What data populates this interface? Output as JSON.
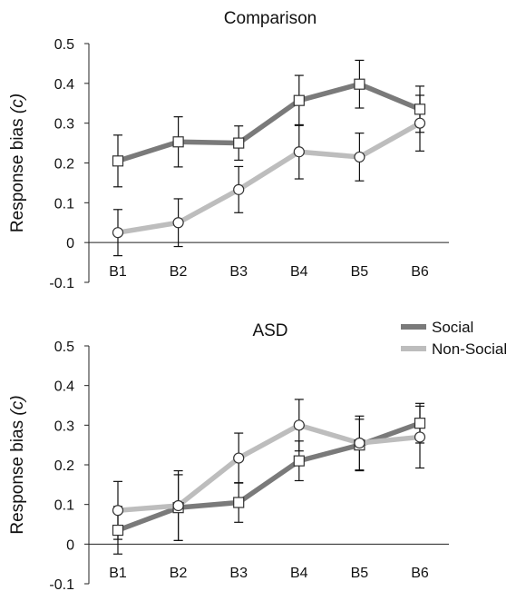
{
  "legend": {
    "placement": "right, between panels",
    "items": [
      {
        "label": "Social",
        "color": "#7a7a7a"
      },
      {
        "label": "Non-Social",
        "color": "#bdbdbd"
      }
    ]
  },
  "chart_data": [
    {
      "type": "line",
      "title": "Comparison",
      "xlabel": "",
      "ylabel": "Response bias (c)",
      "ylabel_main": "Response bias ",
      "ylabel_symbol": "(c)",
      "categories": [
        "B1",
        "B2",
        "B3",
        "B4",
        "B5",
        "B6"
      ],
      "ylim": [
        -0.1,
        0.5
      ],
      "yticks": [
        -0.1,
        0,
        0.1,
        0.2,
        0.3,
        0.4,
        0.5
      ],
      "ytick_labels": [
        "-0.1",
        "0",
        "0.1",
        "0.2",
        "0.3",
        "0.4",
        "0.5"
      ],
      "grid": false,
      "series": [
        {
          "name": "Social",
          "marker": "square",
          "color": "#7a7a7a",
          "values": [
            0.205,
            0.253,
            0.25,
            0.357,
            0.398,
            0.335
          ],
          "error": [
            0.065,
            0.063,
            0.043,
            0.063,
            0.06,
            0.058
          ]
        },
        {
          "name": "Non-Social",
          "marker": "circle",
          "color": "#bdbdbd",
          "values": [
            0.025,
            0.05,
            0.133,
            0.228,
            0.215,
            0.3
          ],
          "error": [
            0.058,
            0.06,
            0.058,
            0.068,
            0.06,
            0.07
          ]
        }
      ]
    },
    {
      "type": "line",
      "title": "ASD",
      "xlabel": "",
      "ylabel": "Response bias (c)",
      "ylabel_main": "Response bias ",
      "ylabel_symbol": "(c)",
      "categories": [
        "B1",
        "B2",
        "B3",
        "B4",
        "B5",
        "B6"
      ],
      "ylim": [
        -0.1,
        0.5
      ],
      "yticks": [
        -0.1,
        0,
        0.1,
        0.2,
        0.3,
        0.4,
        0.5
      ],
      "ytick_labels": [
        "-0.1",
        "0",
        "0.1",
        "0.2",
        "0.3",
        "0.4",
        "0.5"
      ],
      "grid": false,
      "series": [
        {
          "name": "Social",
          "marker": "square",
          "color": "#7a7a7a",
          "values": [
            0.035,
            0.092,
            0.105,
            0.21,
            0.25,
            0.305
          ],
          "error": [
            0.06,
            0.083,
            0.05,
            0.05,
            0.065,
            0.05
          ]
        },
        {
          "name": "Non-Social",
          "marker": "circle",
          "color": "#bdbdbd",
          "values": [
            0.085,
            0.097,
            0.217,
            0.3,
            0.255,
            0.27
          ],
          "error": [
            0.073,
            0.088,
            0.063,
            0.065,
            0.068,
            0.078
          ]
        }
      ]
    }
  ]
}
